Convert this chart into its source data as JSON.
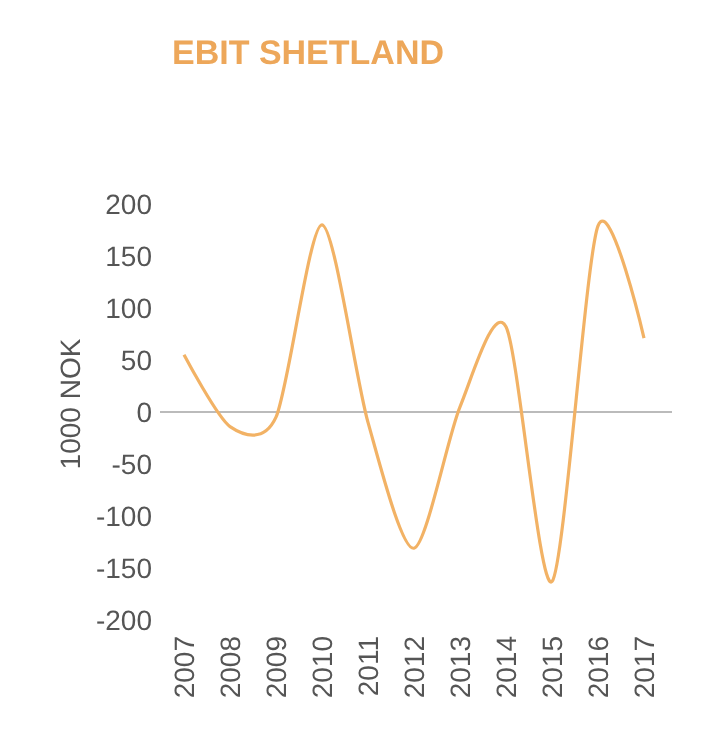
{
  "chart_data": {
    "type": "line",
    "title": "EBIT SHETLAND",
    "ylabel": "1000 NOK",
    "categories": [
      "2007",
      "2008",
      "2009",
      "2010",
      "2011",
      "2012",
      "2013",
      "2014",
      "2015",
      "2016",
      "2017"
    ],
    "series": [
      {
        "color": "#f2b265",
        "values": [
          55,
          -14,
          -5,
          180,
          -10,
          -131,
          5,
          82,
          -163,
          179,
          71
        ]
      }
    ],
    "ylim": [
      -200,
      200
    ],
    "yticks": [
      -200,
      -150,
      -100,
      -50,
      0,
      50,
      100,
      150,
      200
    ],
    "ref_lines": [
      {
        "axis": "y",
        "value": 0,
        "color": "#bbbbbb"
      }
    ],
    "grid": false,
    "marker": "none",
    "line_style": "solid"
  }
}
